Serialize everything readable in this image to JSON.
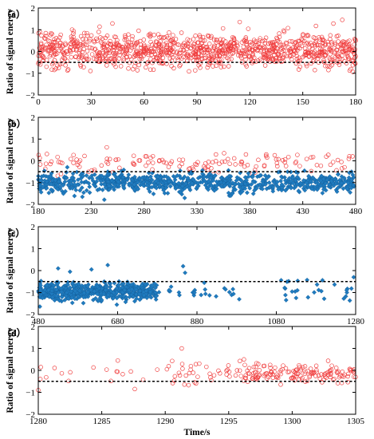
{
  "figure": {
    "x_axis_label": "Time/s",
    "series_colors": {
      "circle": "#f04040",
      "diamond": "#1f7bbf"
    }
  },
  "chart_data": [
    {
      "type": "scatter",
      "panel_label": "（a）",
      "ylabel": "Ratio of signal energy",
      "xlim": [
        0,
        180
      ],
      "ylim": [
        -2,
        2
      ],
      "x_ticks": [
        0,
        30,
        60,
        90,
        120,
        150,
        180
      ],
      "y_ticks": [
        -2,
        -1,
        0,
        1,
        2
      ],
      "threshold": -0.5,
      "regions": [
        {
          "marker": "circle",
          "x_start": 0,
          "x_end": 180,
          "y_center": 0.05,
          "y_spread": 0.4,
          "count": 1100,
          "seed": 11
        }
      ]
    },
    {
      "type": "scatter",
      "panel_label": "（b）",
      "ylabel": "Ratio of signal energy",
      "xlim": [
        180,
        480
      ],
      "ylim": [
        -2,
        2
      ],
      "x_ticks": [
        180,
        230,
        280,
        330,
        380,
        430,
        480
      ],
      "y_ticks": [
        -2,
        -1,
        0,
        1,
        2
      ],
      "threshold": -0.5,
      "regions": [
        {
          "marker": "circle",
          "x_start": 180,
          "x_end": 480,
          "y_center": -0.1,
          "y_spread": 0.25,
          "count": 140,
          "seed": 21
        },
        {
          "marker": "diamond",
          "x_start": 180,
          "x_end": 480,
          "y_center": -1.0,
          "y_spread": 0.22,
          "count": 800,
          "seed": 22
        }
      ]
    },
    {
      "type": "scatter",
      "panel_label": "（c）",
      "ylabel": "Ratio of signal energy",
      "xlim": [
        480,
        1280
      ],
      "ylim": [
        -2,
        2
      ],
      "x_ticks": [
        480,
        680,
        880,
        1080,
        1280
      ],
      "y_ticks": [
        -2,
        -1,
        0,
        1,
        2
      ],
      "threshold": -0.5,
      "regions": [
        {
          "marker": "diamond",
          "x_start": 480,
          "x_end": 780,
          "y_center": -0.95,
          "y_spread": 0.2,
          "count": 520,
          "seed": 31
        },
        {
          "marker": "diamond",
          "x_start": 780,
          "x_end": 1000,
          "y_center": -0.95,
          "y_spread": 0.2,
          "count": 24,
          "seed": 32
        },
        {
          "marker": "diamond",
          "x_start": 1080,
          "x_end": 1280,
          "y_center": -0.9,
          "y_spread": 0.25,
          "count": 28,
          "seed": 33
        }
      ],
      "points": [
        {
          "marker": "diamond",
          "x": 530,
          "y": 0.1
        },
        {
          "marker": "diamond",
          "x": 560,
          "y": -0.05
        },
        {
          "marker": "diamond",
          "x": 614,
          "y": 0.05
        },
        {
          "marker": "diamond",
          "x": 655,
          "y": 0.25
        },
        {
          "marker": "diamond",
          "x": 845,
          "y": 0.2
        },
        {
          "marker": "diamond",
          "x": 850,
          "y": -0.1
        },
        {
          "marker": "diamond",
          "x": 1275,
          "y": -0.3
        }
      ]
    },
    {
      "type": "scatter",
      "panel_label": "（d）",
      "ylabel": "Ratio of signal energy",
      "xlim": [
        1280,
        1305
      ],
      "ylim": [
        -2,
        2
      ],
      "x_ticks": [
        1280,
        1285,
        1290,
        1295,
        1300,
        1305
      ],
      "y_ticks": [
        -2,
        -1,
        0,
        1,
        2
      ],
      "threshold": -0.5,
      "regions": [
        {
          "marker": "circle",
          "x_start": 1280,
          "x_end": 1290,
          "y_center": -0.1,
          "y_spread": 0.25,
          "count": 16,
          "seed": 41
        },
        {
          "marker": "circle",
          "x_start": 1290,
          "x_end": 1296,
          "y_center": -0.1,
          "y_spread": 0.28,
          "count": 40,
          "seed": 42
        },
        {
          "marker": "circle",
          "x_start": 1296,
          "x_end": 1305,
          "y_center": -0.15,
          "y_spread": 0.22,
          "count": 150,
          "seed": 43
        }
      ],
      "points": [
        {
          "marker": "circle",
          "x": 1280.2,
          "y": 0.15
        },
        {
          "marker": "circle",
          "x": 1280.0,
          "y": -0.9
        },
        {
          "marker": "circle",
          "x": 1287.6,
          "y": -0.85
        },
        {
          "marker": "circle",
          "x": 1291.3,
          "y": 1.0
        },
        {
          "marker": "circle",
          "x": 1296.2,
          "y": 0.5
        }
      ]
    }
  ]
}
